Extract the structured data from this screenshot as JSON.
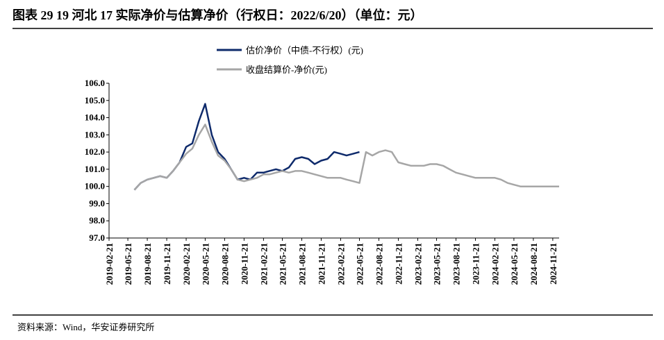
{
  "chart_data": {
    "type": "line",
    "title": "图表 29 19 河北 17 实际净价与估算净价（行权日：2022/6/20）（单位：元）",
    "source": "资料来源：Wind，华安证券研究所",
    "x": [
      "2019-06-21",
      "2019-07-21",
      "2019-08-21",
      "2019-09-21",
      "2019-10-21",
      "2019-11-21",
      "2019-12-21",
      "2020-01-21",
      "2020-02-21",
      "2020-03-21",
      "2020-04-21",
      "2020-05-21",
      "2020-06-21",
      "2020-07-21",
      "2020-08-21",
      "2020-09-21",
      "2020-10-21",
      "2020-11-21",
      "2020-12-21",
      "2021-01-21",
      "2021-02-21",
      "2021-03-21",
      "2021-04-21",
      "2021-05-21",
      "2021-06-21",
      "2021-07-21",
      "2021-08-21",
      "2021-09-21",
      "2021-10-21",
      "2021-11-21",
      "2021-12-21",
      "2022-01-21",
      "2022-02-21",
      "2022-03-21",
      "2022-04-21",
      "2022-05-21",
      "2022-06-21",
      "2022-07-21",
      "2022-08-21",
      "2022-09-21",
      "2022-10-21",
      "2022-11-21",
      "2022-12-21",
      "2023-01-21",
      "2023-02-21",
      "2023-03-21",
      "2023-04-21",
      "2023-05-21",
      "2023-06-21",
      "2023-07-21",
      "2023-08-21",
      "2023-09-21",
      "2023-10-21",
      "2023-11-21",
      "2023-12-21",
      "2024-01-21",
      "2024-02-21",
      "2024-03-21",
      "2024-04-21",
      "2024-05-21",
      "2024-06-21",
      "2024-07-21",
      "2024-08-21",
      "2024-09-21",
      "2024-10-21",
      "2024-11-21",
      "2024-12-21"
    ],
    "series": [
      {
        "name": "估价净价（中债-不行权）(元)",
        "color": "#0e2a6b",
        "values": [
          99.8,
          100.2,
          100.4,
          100.5,
          100.6,
          100.5,
          100.9,
          101.4,
          102.3,
          102.5,
          103.8,
          104.8,
          103.0,
          102.0,
          101.6,
          101.0,
          100.4,
          100.5,
          100.4,
          100.8,
          100.8,
          100.9,
          101.0,
          100.9,
          101.1,
          101.6,
          101.7,
          101.6,
          101.3,
          101.5,
          101.6,
          102.0,
          101.9,
          101.8,
          101.9,
          102.0,
          null,
          null,
          null,
          null,
          null,
          null,
          null,
          null,
          null,
          null,
          null,
          null,
          null,
          null,
          null,
          null,
          null,
          null,
          null,
          null,
          null,
          null,
          null,
          null,
          null,
          null,
          null,
          null,
          null,
          null,
          null
        ]
      },
      {
        "name": "收盘结算价-净价(元)",
        "color": "#a6a6a6",
        "values": [
          99.8,
          100.2,
          100.4,
          100.5,
          100.6,
          100.5,
          100.9,
          101.4,
          101.9,
          102.2,
          103.0,
          103.6,
          102.6,
          101.8,
          101.5,
          101.0,
          100.4,
          100.3,
          100.4,
          100.5,
          100.7,
          100.7,
          100.8,
          100.9,
          100.8,
          100.9,
          100.9,
          100.8,
          100.7,
          100.6,
          100.5,
          100.5,
          100.5,
          100.4,
          100.3,
          100.2,
          102.0,
          101.8,
          102.0,
          102.1,
          102.0,
          101.4,
          101.3,
          101.2,
          101.2,
          101.2,
          101.3,
          101.3,
          101.2,
          101.0,
          100.8,
          100.7,
          100.6,
          100.5,
          100.5,
          100.5,
          100.5,
          100.4,
          100.2,
          100.1,
          100.0,
          100.0,
          100.0,
          100.0,
          100.0,
          100.0,
          100.0
        ]
      }
    ],
    "xlim": [
      "2019-02-21",
      "2024-12-21"
    ],
    "xticks": [
      "2019-02-21",
      "2019-05-21",
      "2019-08-21",
      "2019-11-21",
      "2020-02-21",
      "2020-05-21",
      "2020-08-21",
      "2020-11-21",
      "2021-02-21",
      "2021-05-21",
      "2021-08-21",
      "2021-11-21",
      "2022-02-21",
      "2022-05-21",
      "2022-08-21",
      "2022-11-21",
      "2023-02-21",
      "2023-05-21",
      "2023-08-21",
      "2023-11-21",
      "2024-02-21",
      "2024-05-21",
      "2024-08-21",
      "2024-11-21"
    ],
    "ylim": [
      97,
      106
    ],
    "yticks": [
      {
        "value": 97,
        "label": "97.0"
      },
      {
        "value": 98,
        "label": "98.0"
      },
      {
        "value": 99,
        "label": "99.0"
      },
      {
        "value": 100,
        "label": "100.0"
      },
      {
        "value": 101,
        "label": "101.0"
      },
      {
        "value": 102,
        "label": "102.0"
      },
      {
        "value": 103,
        "label": "103.0"
      },
      {
        "value": 104,
        "label": "104.0"
      },
      {
        "value": 105,
        "label": "105.0"
      },
      {
        "value": 106,
        "label": "106.0"
      }
    ],
    "legend": "top"
  }
}
